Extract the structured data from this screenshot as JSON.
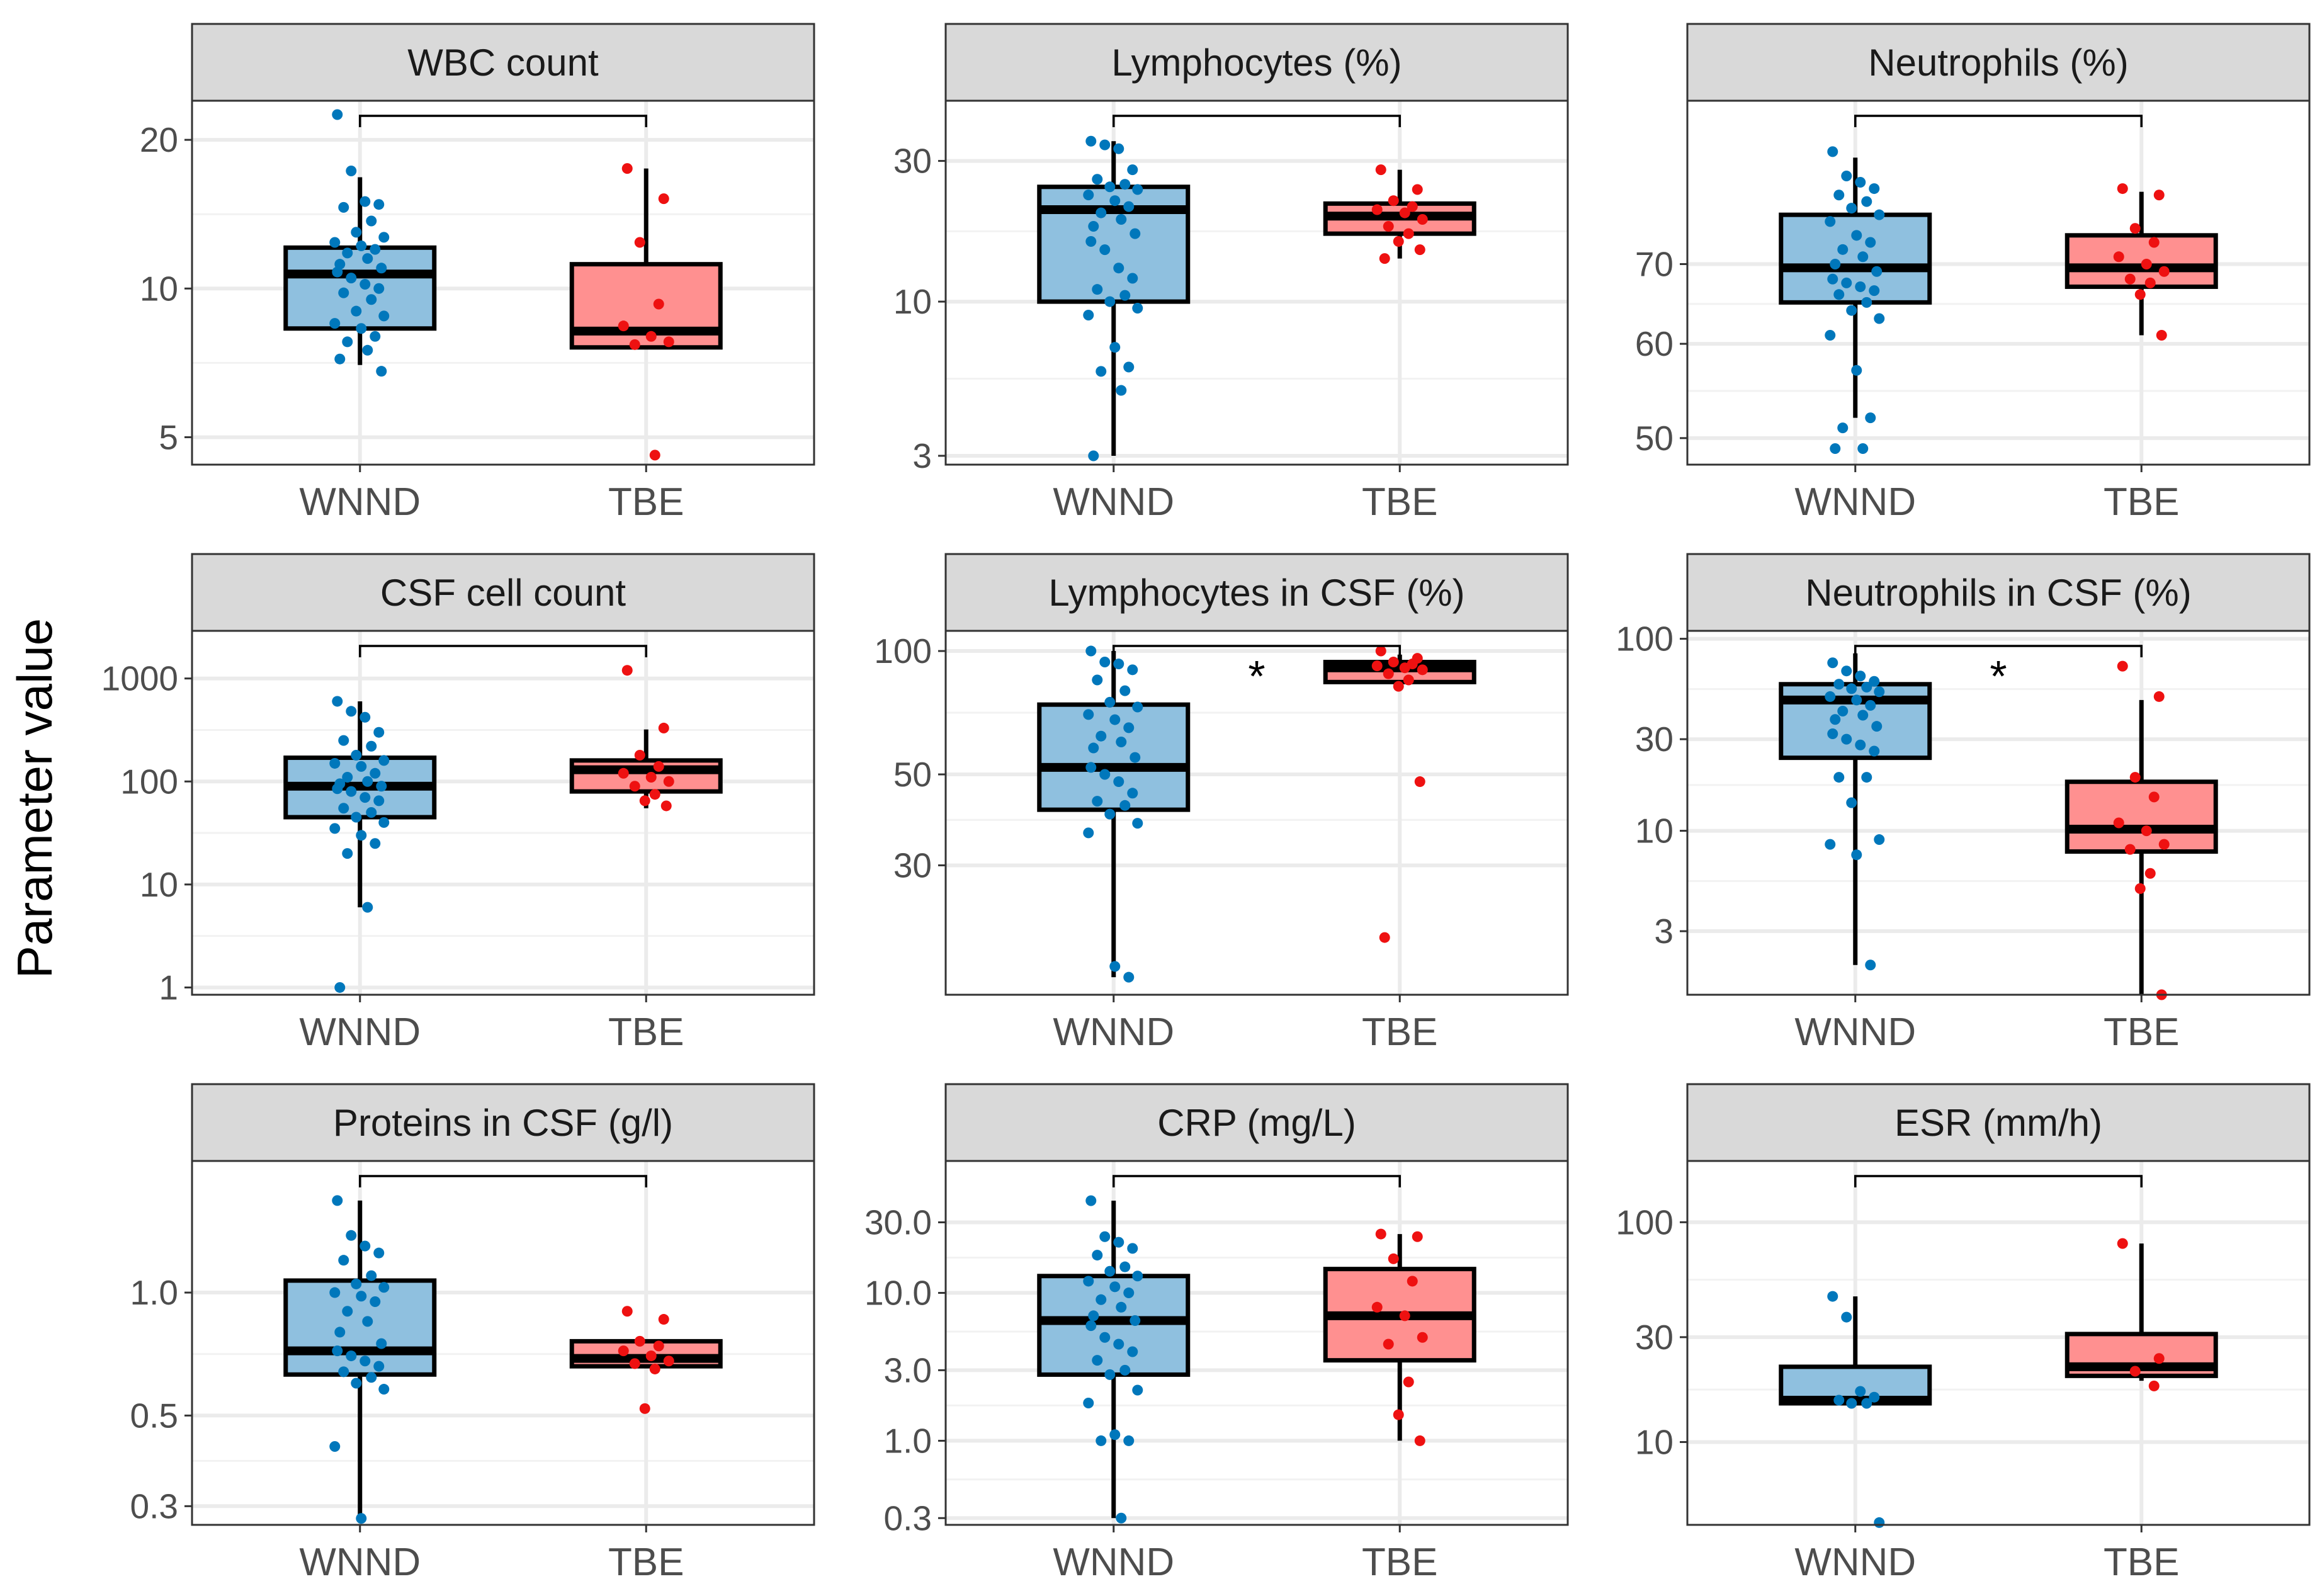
{
  "figure": {
    "ylabel": "Parameter value",
    "group_colors": {
      "WNND": "#0077bb",
      "TBE": "#ee1111"
    },
    "box_colors": {
      "WNND": "#8fc0df",
      "TBE": "#ff9090"
    }
  },
  "chart_data": [
    {
      "type": "box",
      "title": "WBC count",
      "scale": "log",
      "ylim": [
        4.4,
        24
      ],
      "ticks": [
        {
          "v": 5,
          "label": "5"
        },
        {
          "v": 10,
          "label": "10"
        },
        {
          "v": 20,
          "label": "20"
        }
      ],
      "categories": [
        "WNND",
        "TBE"
      ],
      "significance": "",
      "boxes": [
        {
          "group": "WNND",
          "q1": 8.3,
          "median": 10.7,
          "q3": 12.1,
          "whisker_low": 7.0,
          "whisker_high": 16.8,
          "points": [
            22.5,
            17.3,
            15.0,
            14.8,
            14.6,
            13.7,
            13.0,
            12.7,
            12.4,
            12.2,
            12.0,
            11.8,
            11.5,
            11.2,
            11.0,
            10.8,
            10.5,
            10.2,
            10.0,
            9.8,
            9.5,
            9.0,
            8.8,
            8.5,
            8.3,
            8.0,
            7.8,
            7.5,
            7.2,
            6.8
          ]
        },
        {
          "group": "TBE",
          "q1": 7.6,
          "median": 8.2,
          "q3": 11.2,
          "whisker_low": 7.6,
          "whisker_high": 17.5,
          "points": [
            17.5,
            15.2,
            12.4,
            9.3,
            8.4,
            8.0,
            7.8,
            7.7,
            4.6
          ]
        }
      ]
    },
    {
      "type": "box",
      "title": "Lymphocytes (%)",
      "scale": "log",
      "ylim": [
        2.8,
        48
      ],
      "ticks": [
        {
          "v": 3,
          "label": "3"
        },
        {
          "v": 10,
          "label": "10"
        },
        {
          "v": 30,
          "label": "30"
        }
      ],
      "categories": [
        "WNND",
        "TBE"
      ],
      "significance": "",
      "boxes": [
        {
          "group": "WNND",
          "q1": 10.0,
          "median": 20.5,
          "q3": 24.5,
          "whisker_low": 3.0,
          "whisker_high": 35.0,
          "points": [
            35.0,
            34.0,
            33.0,
            28.0,
            26.0,
            25.0,
            24.5,
            24.0,
            23.0,
            22.0,
            21.0,
            20.0,
            19.0,
            18.0,
            17.0,
            16.0,
            15.0,
            13.0,
            12.0,
            11.0,
            10.5,
            10.0,
            9.5,
            9.0,
            7.0,
            6.0,
            5.8,
            5.0,
            3.0
          ]
        },
        {
          "group": "TBE",
          "q1": 17.0,
          "median": 19.5,
          "q3": 21.5,
          "whisker_low": 14.0,
          "whisker_high": 28.0,
          "points": [
            28.0,
            24.0,
            22.0,
            21.0,
            20.5,
            20.0,
            19.0,
            18.0,
            17.0,
            16.0,
            15.0,
            14.0
          ]
        }
      ]
    },
    {
      "type": "box",
      "title": "Neutrophils (%)",
      "scale": "log",
      "ylim": [
        47.5,
        96
      ],
      "ticks": [
        {
          "v": 50,
          "label": "50"
        },
        {
          "v": 60,
          "label": "60"
        },
        {
          "v": 70,
          "label": "70"
        }
      ],
      "categories": [
        "WNND",
        "TBE"
      ],
      "significance": "",
      "boxes": [
        {
          "group": "WNND",
          "q1": 65.0,
          "median": 69.5,
          "q3": 77.0,
          "whisker_low": 52.0,
          "whisker_high": 86.0,
          "points": [
            87.0,
            83.0,
            82.0,
            81.0,
            80.0,
            79.0,
            78.0,
            77.0,
            76.0,
            74.0,
            73.0,
            72.0,
            71.0,
            70.0,
            69.0,
            68.0,
            67.5,
            67.0,
            66.5,
            66.0,
            65.0,
            64.0,
            63.0,
            61.0,
            57.0,
            52.0,
            51.0,
            49.0,
            49.0
          ]
        },
        {
          "group": "TBE",
          "q1": 67.0,
          "median": 69.5,
          "q3": 74.0,
          "whisker_low": 61.0,
          "whisker_high": 80.5,
          "points": [
            81.0,
            80.0,
            75.0,
            73.0,
            71.0,
            70.0,
            69.0,
            68.0,
            67.5,
            66.0,
            61.0
          ]
        }
      ]
    },
    {
      "type": "box",
      "title": "CSF cell count",
      "scale": "log",
      "ylim": [
        0.85,
        2900
      ],
      "ticks": [
        {
          "v": 1,
          "label": "1"
        },
        {
          "v": 10,
          "label": "10"
        },
        {
          "v": 100,
          "label": "100"
        },
        {
          "v": 1000,
          "label": "1000"
        }
      ],
      "categories": [
        "WNND",
        "TBE"
      ],
      "significance": "",
      "boxes": [
        {
          "group": "WNND",
          "q1": 45.0,
          "median": 90.0,
          "q3": 170.0,
          "whisker_low": 6.0,
          "whisker_high": 600.0,
          "points": [
            600.0,
            480.0,
            420.0,
            300.0,
            250.0,
            220.0,
            180.0,
            160.0,
            150.0,
            140.0,
            120.0,
            110.0,
            100.0,
            95.0,
            90.0,
            85.0,
            80.0,
            70.0,
            65.0,
            55.0,
            50.0,
            45.0,
            40.0,
            35.0,
            30.0,
            25.0,
            20.0,
            6.0,
            1.0
          ]
        },
        {
          "group": "TBE",
          "q1": 80.0,
          "median": 130.0,
          "q3": 160.0,
          "whisker_low": 55.0,
          "whisker_high": 320.0,
          "points": [
            1200.0,
            330.0,
            180.0,
            140.0,
            120.0,
            110.0,
            100.0,
            90.0,
            75.0,
            65.0,
            58.0
          ]
        }
      ]
    },
    {
      "type": "box",
      "title": "Lymphocytes in CSF (%)",
      "scale": "log",
      "ylim": [
        14.5,
        112
      ],
      "ticks": [
        {
          "v": 30,
          "label": "30"
        },
        {
          "v": 50,
          "label": "50"
        },
        {
          "v": 100,
          "label": "100"
        }
      ],
      "categories": [
        "WNND",
        "TBE"
      ],
      "significance": "*",
      "boxes": [
        {
          "group": "WNND",
          "q1": 41.0,
          "median": 52.0,
          "q3": 74.0,
          "whisker_low": 16.0,
          "whisker_high": 100.0,
          "points": [
            100.0,
            94.0,
            93.0,
            90.0,
            85.0,
            80.0,
            75.0,
            73.0,
            70.0,
            68.0,
            65.0,
            62.0,
            60.0,
            58.0,
            55.0,
            52.0,
            50.0,
            48.0,
            45.0,
            43.0,
            42.0,
            40.0,
            38.0,
            36.0,
            17.0,
            16.0
          ]
        },
        {
          "group": "TBE",
          "q1": 84.0,
          "median": 91.0,
          "q3": 94.0,
          "whisker_low": 82.0,
          "whisker_high": 98.0,
          "points": [
            100.0,
            96.0,
            94.0,
            93.0,
            92.0,
            91.0,
            90.0,
            88.0,
            85.0,
            82.0,
            48.0,
            20.0
          ]
        }
      ]
    },
    {
      "type": "box",
      "title": "Neutrophils in CSF (%)",
      "scale": "log",
      "ylim": [
        1.4,
        110
      ],
      "ticks": [
        {
          "v": 3,
          "label": "3"
        },
        {
          "v": 10,
          "label": "10"
        },
        {
          "v": 30,
          "label": "30"
        },
        {
          "v": 100,
          "label": "100"
        }
      ],
      "categories": [
        "WNND",
        "TBE"
      ],
      "significance": "*",
      "boxes": [
        {
          "group": "WNND",
          "q1": 24.0,
          "median": 48.0,
          "q3": 58.0,
          "whisker_low": 2.0,
          "whisker_high": 84.0,
          "points": [
            75.0,
            68.0,
            64.0,
            60.0,
            58.0,
            56.0,
            55.0,
            53.0,
            50.0,
            48.0,
            45.0,
            42.0,
            40.0,
            38.0,
            35.0,
            32.0,
            30.0,
            28.0,
            26.0,
            19.0,
            19.0,
            14.0,
            9.0,
            8.5,
            7.5,
            2.0
          ]
        },
        {
          "group": "TBE",
          "q1": 7.8,
          "median": 10.2,
          "q3": 18.0,
          "whisker_low": 1.4,
          "whisker_high": 48.0,
          "points": [
            72.0,
            50.0,
            19.0,
            15.0,
            11.0,
            10.0,
            8.5,
            8.0,
            6.0,
            5.0,
            1.4
          ]
        }
      ]
    },
    {
      "type": "box",
      "title": "Proteins in CSF (g/l)",
      "scale": "log",
      "ylim": [
        0.27,
        2.1
      ],
      "ticks": [
        {
          "v": 0.3,
          "label": "0.3"
        },
        {
          "v": 0.5,
          "label": "0.5"
        },
        {
          "v": 1.0,
          "label": "1.0"
        }
      ],
      "categories": [
        "WNND",
        "TBE"
      ],
      "significance": "",
      "boxes": [
        {
          "group": "WNND",
          "q1": 0.63,
          "median": 0.72,
          "q3": 1.07,
          "whisker_low": 0.28,
          "whisker_high": 1.68,
          "points": [
            1.68,
            1.38,
            1.3,
            1.25,
            1.2,
            1.1,
            1.05,
            1.03,
            1.0,
            0.98,
            0.95,
            0.9,
            0.85,
            0.8,
            0.75,
            0.72,
            0.7,
            0.68,
            0.66,
            0.64,
            0.62,
            0.6,
            0.58,
            0.42,
            0.28
          ]
        },
        {
          "group": "TBE",
          "q1": 0.66,
          "median": 0.69,
          "q3": 0.76,
          "whisker_low": 0.66,
          "whisker_high": 0.76,
          "points": [
            0.9,
            0.86,
            0.76,
            0.74,
            0.72,
            0.7,
            0.68,
            0.67,
            0.65,
            0.52
          ]
        }
      ]
    },
    {
      "type": "box",
      "title": "CRP (mg/L)",
      "scale": "log",
      "ylim": [
        0.27,
        78
      ],
      "ticks": [
        {
          "v": 0.3,
          "label": "0.3"
        },
        {
          "v": 1.0,
          "label": "1.0"
        },
        {
          "v": 3.0,
          "label": "3.0"
        },
        {
          "v": 10.0,
          "label": "10.0"
        },
        {
          "v": 30.0,
          "label": "30.0"
        }
      ],
      "categories": [
        "WNND",
        "TBE"
      ],
      "significance": "",
      "boxes": [
        {
          "group": "WNND",
          "q1": 2.8,
          "median": 6.5,
          "q3": 13.0,
          "whisker_low": 0.3,
          "whisker_high": 42.0,
          "points": [
            42.0,
            24.0,
            22.0,
            20.0,
            18.0,
            15.0,
            14.0,
            13.0,
            12.0,
            11.0,
            10.0,
            9.0,
            8.0,
            7.0,
            6.5,
            6.0,
            5.0,
            4.5,
            4.0,
            3.5,
            3.0,
            2.8,
            2.2,
            1.8,
            1.1,
            1.0,
            1.0,
            0.3
          ]
        },
        {
          "group": "TBE",
          "q1": 3.5,
          "median": 7.0,
          "q3": 14.5,
          "whisker_low": 1.0,
          "whisker_high": 25.0,
          "points": [
            25.0,
            24.0,
            17.0,
            12.0,
            8.0,
            7.0,
            5.0,
            4.5,
            2.5,
            1.5,
            1.0
          ]
        }
      ]
    },
    {
      "type": "box",
      "title": "ESR (mm/h)",
      "scale": "log",
      "ylim": [
        4.2,
        190
      ],
      "ticks": [
        {
          "v": 10,
          "label": "10"
        },
        {
          "v": 30,
          "label": "30"
        },
        {
          "v": 100,
          "label": "100"
        }
      ],
      "categories": [
        "WNND",
        "TBE"
      ],
      "significance": "",
      "boxes": [
        {
          "group": "WNND",
          "q1": 15.0,
          "median": 15.5,
          "q3": 22.0,
          "whisker_low": 15.0,
          "whisker_high": 46.0,
          "points": [
            46.0,
            37.0,
            17.0,
            16.0,
            15.5,
            15.0,
            15.0,
            4.3
          ]
        },
        {
          "group": "TBE",
          "q1": 20.0,
          "median": 22.0,
          "q3": 31.0,
          "whisker_low": 19.0,
          "whisker_high": 80.0,
          "points": [
            80.0,
            24.0,
            21.0,
            18.0
          ]
        }
      ]
    }
  ]
}
